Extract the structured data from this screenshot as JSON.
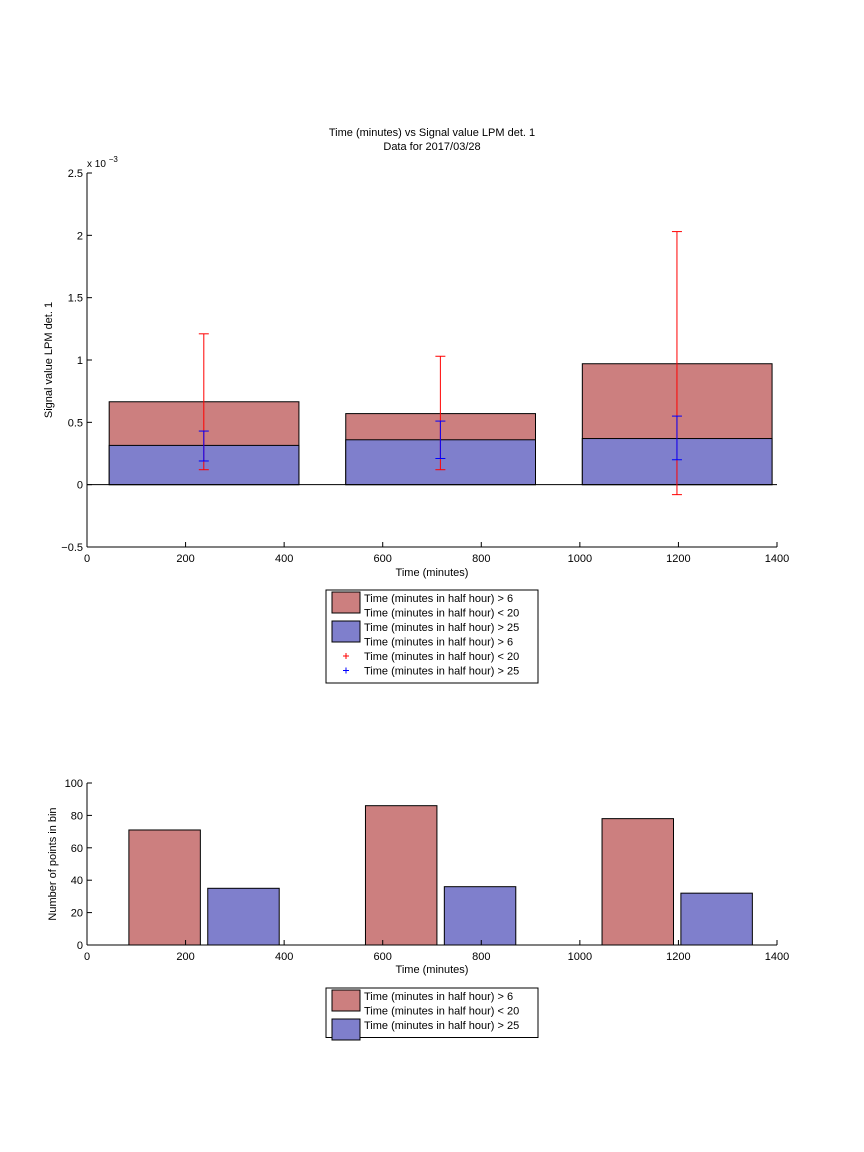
{
  "chart_data": [
    {
      "type": "bar",
      "title": "Time (minutes) vs Signal value LPM det. 1",
      "subtitle": "Data for 2017/03/28",
      "xlabel": "Time (minutes)",
      "ylabel": "Signal value LPM det. 1",
      "y_exponent_label": "x 10",
      "y_exponent_power": "−3",
      "xlim": [
        0,
        1400
      ],
      "ylim": [
        -0.5,
        2.5
      ],
      "x_ticks": [
        0,
        200,
        400,
        600,
        800,
        1000,
        1200,
        1400
      ],
      "y_ticks": [
        -0.5,
        0,
        0.5,
        1,
        1.5,
        2,
        2.5
      ],
      "x_tick_labels": [
        "0",
        "200",
        "400",
        "600",
        "800",
        "1000",
        "1200",
        "1400"
      ],
      "y_tick_labels": [
        "−0.5",
        "0",
        "0.5",
        "1",
        "1.5",
        "2",
        "2.5"
      ],
      "bars": [
        {
          "x_start": 45,
          "x_end": 430,
          "red": 0.665,
          "blue": 0.315
        },
        {
          "x_start": 525,
          "x_end": 910,
          "red": 0.57,
          "blue": 0.36
        },
        {
          "x_start": 1005,
          "x_end": 1390,
          "red": 0.97,
          "blue": 0.37
        }
      ],
      "error_bars_red": [
        {
          "x": 237,
          "low": 0.12,
          "high": 1.21
        },
        {
          "x": 717,
          "low": 0.12,
          "high": 1.03
        },
        {
          "x": 1197,
          "low": -0.08,
          "high": 2.03
        }
      ],
      "error_bars_blue": [
        {
          "x": 237,
          "low": 0.19,
          "high": 0.43
        },
        {
          "x": 717,
          "low": 0.21,
          "high": 0.51
        },
        {
          "x": 1197,
          "low": 0.2,
          "high": 0.55
        }
      ],
      "legend": {
        "placement": "below",
        "entries": [
          {
            "label": "Time (minutes in half hour) > 6",
            "kind": "patch",
            "color": "#cc7f7f"
          },
          {
            "label": "Time (minutes in half hour) < 20",
            "kind": "none"
          },
          {
            "label": "Time (minutes in half hour) > 25",
            "kind": "patch",
            "color": "#7f7fcc"
          },
          {
            "label": "Time (minutes in half hour) > 6",
            "kind": "none"
          },
          {
            "label": "Time (minutes in half hour) < 20",
            "kind": "plus",
            "color": "#ff0000"
          },
          {
            "label": "Time (minutes in half hour) > 25",
            "kind": "plus",
            "color": "#0000ff"
          }
        ]
      },
      "colors": {
        "red_bar": "#cc7f7f",
        "blue_bar": "#7f7fcc",
        "red_err": "#ff0000",
        "blue_err": "#0000ff"
      }
    },
    {
      "type": "bar",
      "xlabel": "Time (minutes)",
      "ylabel": "Number of points in bin",
      "xlim": [
        0,
        1400
      ],
      "ylim": [
        0,
        100
      ],
      "x_ticks": [
        0,
        200,
        400,
        600,
        800,
        1000,
        1200,
        1400
      ],
      "y_ticks": [
        0,
        20,
        40,
        60,
        80,
        100
      ],
      "x_tick_labels": [
        "0",
        "200",
        "400",
        "600",
        "800",
        "1000",
        "1200",
        "1400"
      ],
      "y_tick_labels": [
        "0",
        "20",
        "40",
        "60",
        "80",
        "100"
      ],
      "bars": [
        {
          "x_start": 85,
          "x_end": 230,
          "value": 71,
          "series": "red"
        },
        {
          "x_start": 245,
          "x_end": 390,
          "value": 35,
          "series": "blue"
        },
        {
          "x_start": 565,
          "x_end": 710,
          "value": 86,
          "series": "red"
        },
        {
          "x_start": 725,
          "x_end": 870,
          "value": 36,
          "series": "blue"
        },
        {
          "x_start": 1045,
          "x_end": 1190,
          "value": 78,
          "series": "red"
        },
        {
          "x_start": 1205,
          "x_end": 1350,
          "value": 32,
          "series": "blue"
        }
      ],
      "legend": {
        "placement": "below",
        "entries": [
          {
            "label": "Time (minutes in half hour) > 6",
            "kind": "patch",
            "color": "#cc7f7f"
          },
          {
            "label": "Time (minutes in half hour) < 20",
            "kind": "none"
          },
          {
            "label": "Time (minutes in half hour) > 25",
            "kind": "patch",
            "color": "#7f7fcc"
          }
        ]
      },
      "colors": {
        "red_bar": "#cc7f7f",
        "blue_bar": "#7f7fcc"
      }
    }
  ]
}
